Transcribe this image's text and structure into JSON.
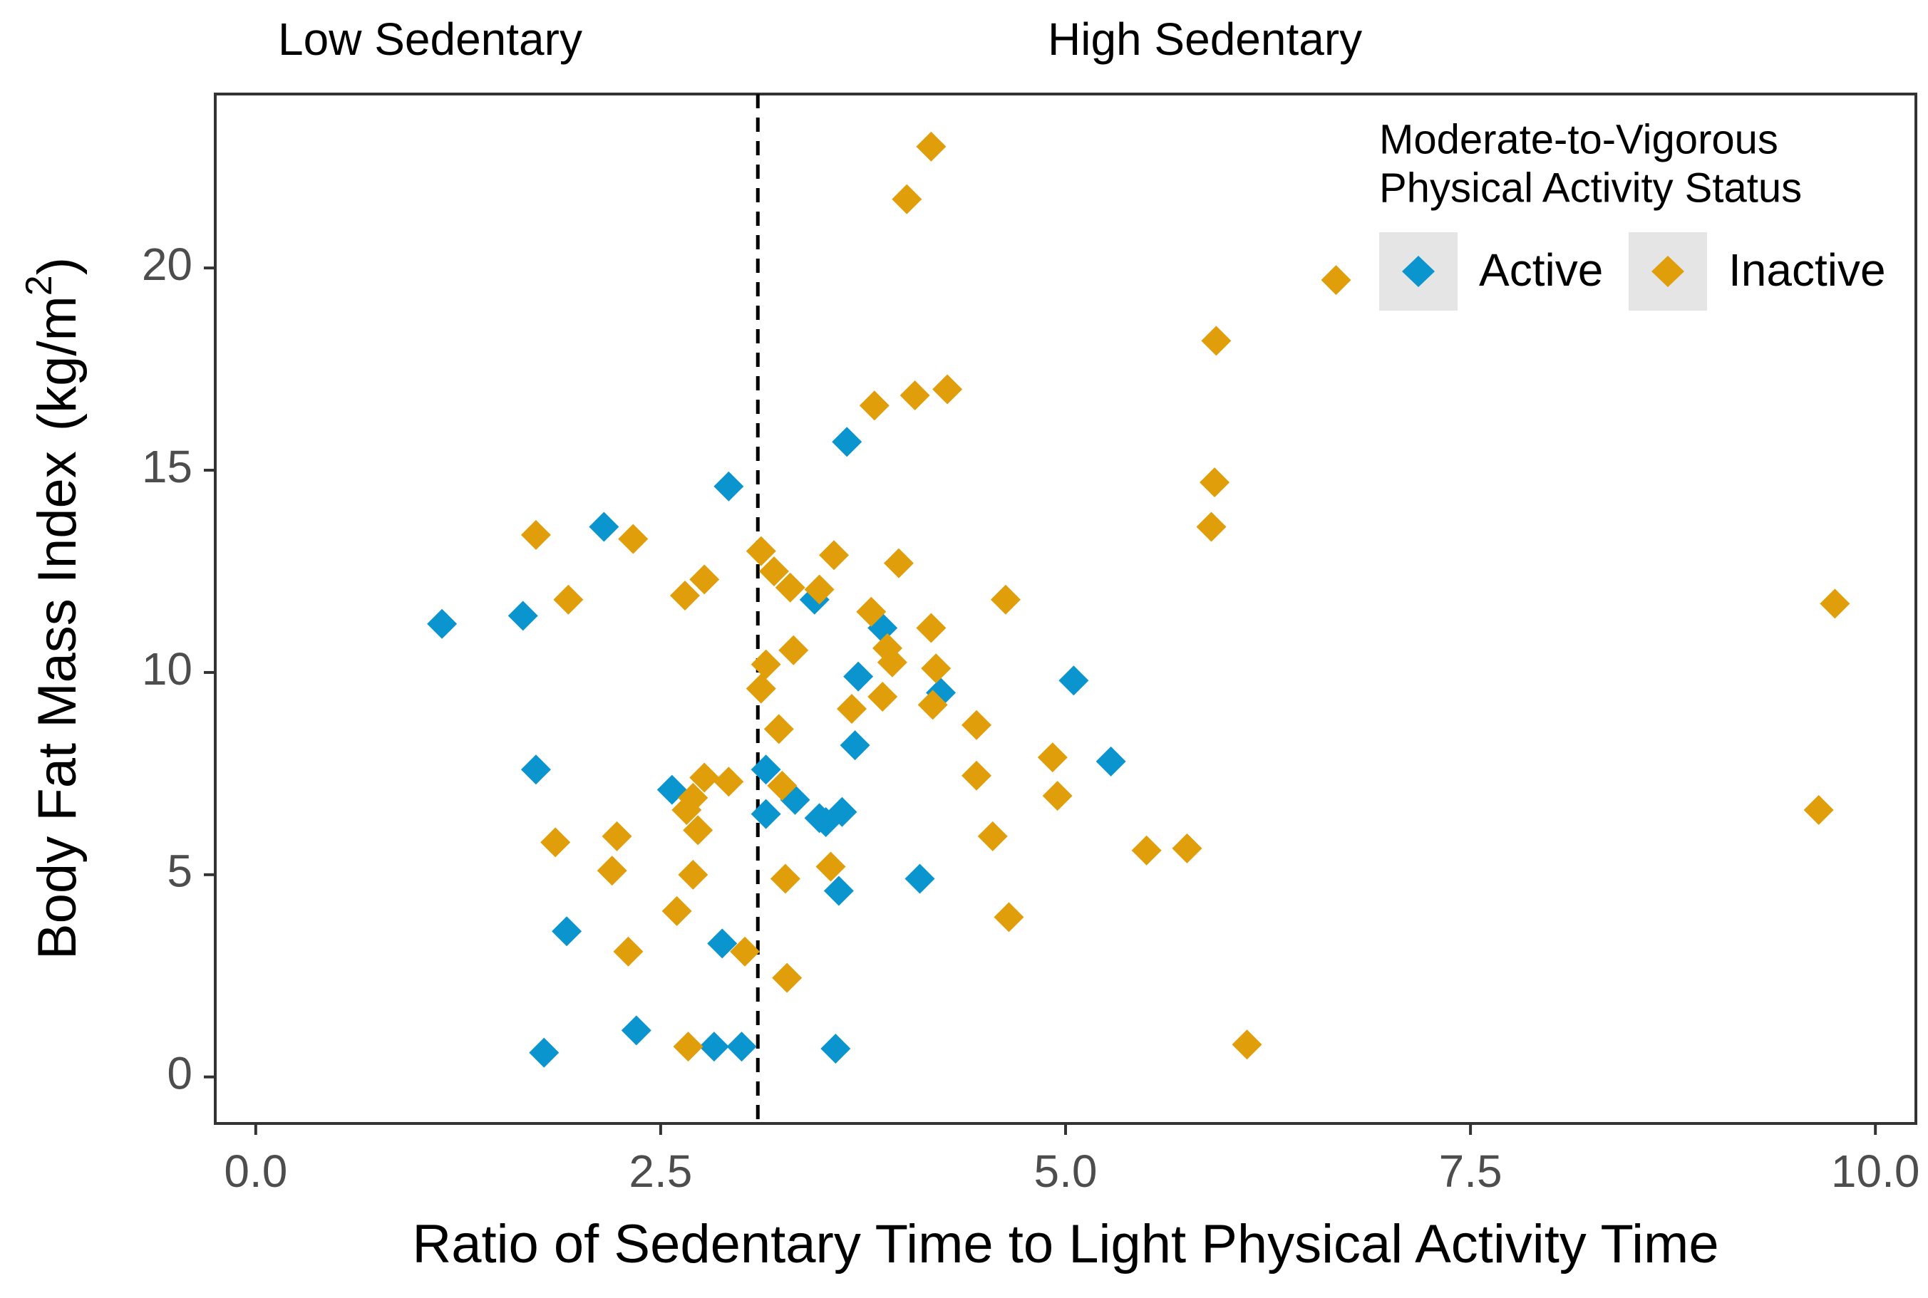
{
  "chart_data": {
    "type": "scatter",
    "title": "",
    "xlabel": "Ratio of Sedentary Time to Light Physical Activity Time",
    "ylabel": {
      "main": "Body Fat Mass Index",
      "unit_open": "(kg/m",
      "unit_sup": "2",
      "unit_close": ")"
    },
    "xlim": [
      -0.25,
      10.25
    ],
    "ylim": [
      -1.15,
      24.3
    ],
    "x_ticks": [
      0,
      2.5,
      5,
      7.5,
      10
    ],
    "x_tick_labels": [
      "0.0",
      "2.5",
      "5.0",
      "7.5",
      "10.0"
    ],
    "y_ticks": [
      0,
      5,
      10,
      15,
      20
    ],
    "y_tick_labels": [
      "0",
      "5",
      "10",
      "15",
      "20"
    ],
    "grid": false,
    "cutoff_line": {
      "x": 3.1,
      "style": "dashed"
    },
    "region_labels": [
      {
        "text": "Low Sedentary",
        "x": 1.0
      },
      {
        "text": "High Sedentary",
        "x": 6.0
      }
    ],
    "legend": {
      "title_line1": "Moderate-to-Vigorous",
      "title_line2": "Physical Activity Status",
      "placement": "top-right",
      "items": [
        {
          "key": "active",
          "label": "Active"
        },
        {
          "key": "inactive",
          "label": "Inactive"
        }
      ]
    },
    "colors": {
      "active": "#0a95cf",
      "inactive": "#e09e0a",
      "axis": "#333333",
      "tick_text": "#4d4d4d",
      "legend_key_bg": "#e5e5e5"
    },
    "marker": "diamond",
    "series": [
      {
        "name": "Active",
        "key": "active",
        "points": [
          [
            1.15,
            11.2
          ],
          [
            1.65,
            11.4
          ],
          [
            1.73,
            7.6
          ],
          [
            1.78,
            0.6
          ],
          [
            1.92,
            3.6
          ],
          [
            2.15,
            13.6
          ],
          [
            2.35,
            1.15
          ],
          [
            2.57,
            7.1
          ],
          [
            2.83,
            0.75
          ],
          [
            2.88,
            3.3
          ],
          [
            2.92,
            14.6
          ],
          [
            3.0,
            0.75
          ],
          [
            3.15,
            7.6
          ],
          [
            3.15,
            6.5
          ],
          [
            3.33,
            6.85
          ],
          [
            3.45,
            11.8
          ],
          [
            3.48,
            6.4
          ],
          [
            3.52,
            6.3
          ],
          [
            3.58,
            0.7
          ],
          [
            3.6,
            4.6
          ],
          [
            3.62,
            6.55
          ],
          [
            3.65,
            15.7
          ],
          [
            3.7,
            8.2
          ],
          [
            3.72,
            9.9
          ],
          [
            3.87,
            11.1
          ],
          [
            4.1,
            4.9
          ],
          [
            4.23,
            9.5
          ],
          [
            5.05,
            9.8
          ],
          [
            5.28,
            7.8
          ]
        ]
      },
      {
        "name": "Inactive",
        "key": "inactive",
        "points": [
          [
            1.73,
            13.4
          ],
          [
            1.85,
            5.8
          ],
          [
            1.93,
            11.8
          ],
          [
            2.2,
            5.1
          ],
          [
            2.23,
            5.95
          ],
          [
            2.3,
            3.1
          ],
          [
            2.33,
            13.3
          ],
          [
            2.6,
            4.1
          ],
          [
            2.65,
            11.9
          ],
          [
            2.66,
            6.6
          ],
          [
            2.67,
            0.75
          ],
          [
            2.7,
            5.0
          ],
          [
            2.7,
            6.9
          ],
          [
            2.73,
            6.1
          ],
          [
            2.77,
            12.3
          ],
          [
            2.77,
            7.4
          ],
          [
            2.92,
            7.3
          ],
          [
            3.02,
            3.1
          ],
          [
            3.12,
            9.6
          ],
          [
            3.12,
            13.0
          ],
          [
            3.15,
            10.2
          ],
          [
            3.2,
            12.5
          ],
          [
            3.23,
            8.6
          ],
          [
            3.25,
            7.2
          ],
          [
            3.27,
            4.9
          ],
          [
            3.28,
            2.45
          ],
          [
            3.3,
            12.1
          ],
          [
            3.32,
            10.55
          ],
          [
            3.48,
            12.05
          ],
          [
            3.55,
            5.2
          ],
          [
            3.57,
            12.9
          ],
          [
            3.68,
            9.1
          ],
          [
            3.8,
            11.5
          ],
          [
            3.82,
            16.6
          ],
          [
            3.87,
            9.4
          ],
          [
            3.9,
            10.6
          ],
          [
            3.93,
            10.25
          ],
          [
            3.97,
            12.7
          ],
          [
            4.02,
            21.7
          ],
          [
            4.07,
            16.85
          ],
          [
            4.17,
            23.0
          ],
          [
            4.17,
            11.1
          ],
          [
            4.18,
            9.2
          ],
          [
            4.2,
            10.1
          ],
          [
            4.27,
            17.0
          ],
          [
            4.45,
            8.7
          ],
          [
            4.45,
            7.45
          ],
          [
            4.55,
            5.95
          ],
          [
            4.63,
            11.8
          ],
          [
            4.65,
            3.95
          ],
          [
            4.92,
            7.9
          ],
          [
            4.95,
            6.95
          ],
          [
            5.5,
            5.6
          ],
          [
            5.75,
            5.65
          ],
          [
            5.9,
            13.6
          ],
          [
            5.92,
            14.7
          ],
          [
            5.93,
            18.2
          ],
          [
            6.12,
            0.8
          ],
          [
            6.67,
            19.7
          ],
          [
            9.65,
            6.6
          ],
          [
            9.75,
            11.7
          ]
        ]
      }
    ]
  }
}
